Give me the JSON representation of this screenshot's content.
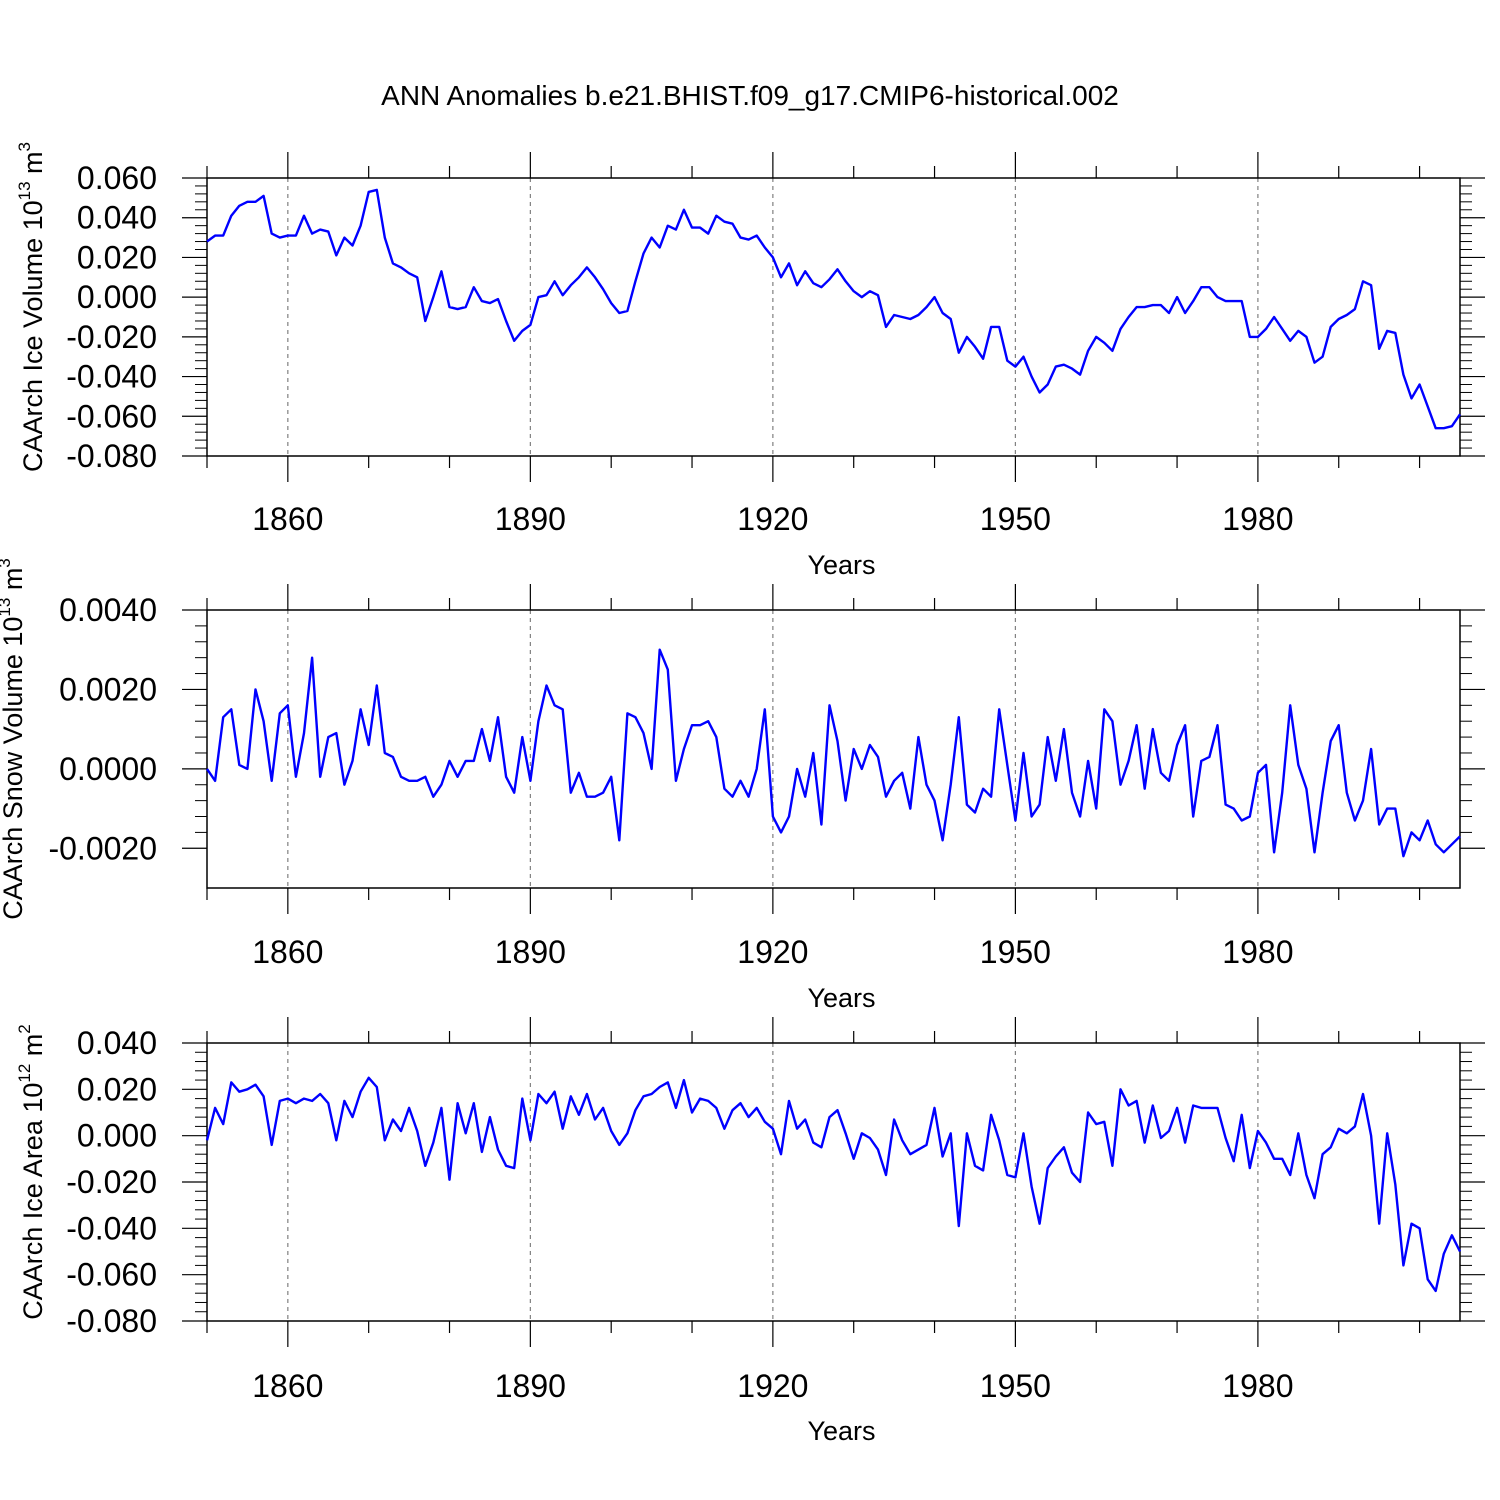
{
  "title": "ANN Anomalies b.e21.BHIST.f09_g17.CMIP6-historical.002",
  "colors": {
    "line": "#0000ff",
    "axis": "#000000",
    "grid": "#808080"
  },
  "chart_data": [
    {
      "type": "line",
      "ylabel": "CAArch Ice Volume 10",
      "ylabel_sup": "13",
      "ylabel_unit": " m",
      "ylabel_unit_sup": "3",
      "xlabel": "Years",
      "xlim": [
        1850,
        2005
      ],
      "ylim": [
        -0.08,
        0.06
      ],
      "xticks": [
        1860,
        1890,
        1920,
        1950,
        1980
      ],
      "xtick_labels": [
        "1860",
        "1890",
        "1920",
        "1950",
        "1980"
      ],
      "yticks": [
        -0.08,
        -0.06,
        -0.04,
        -0.02,
        0.0,
        0.02,
        0.04,
        0.06
      ],
      "ytick_labels": [
        "-0.080",
        "-0.060",
        "-0.040",
        "-0.020",
        "0.000",
        "0.020",
        "0.040",
        "0.060"
      ],
      "x_start": 1850,
      "values": [
        0.028,
        0.031,
        0.031,
        0.041,
        0.046,
        0.048,
        0.048,
        0.051,
        0.032,
        0.03,
        0.031,
        0.031,
        0.041,
        0.032,
        0.034,
        0.033,
        0.021,
        0.03,
        0.026,
        0.036,
        0.053,
        0.054,
        0.03,
        0.017,
        0.015,
        0.012,
        0.01,
        -0.012,
        0.0,
        0.013,
        -0.005,
        -0.006,
        -0.005,
        0.005,
        -0.002,
        -0.003,
        -0.001,
        -0.012,
        -0.022,
        -0.017,
        -0.014,
        0.0,
        0.001,
        0.008,
        0.001,
        0.006,
        0.01,
        0.015,
        0.01,
        0.004,
        -0.003,
        -0.008,
        -0.007,
        0.008,
        0.022,
        0.03,
        0.025,
        0.036,
        0.034,
        0.044,
        0.035,
        0.035,
        0.032,
        0.041,
        0.038,
        0.037,
        0.03,
        0.029,
        0.031,
        0.025,
        0.02,
        0.01,
        0.017,
        0.006,
        0.013,
        0.007,
        0.005,
        0.009,
        0.014,
        0.008,
        0.003,
        0.0,
        0.003,
        0.001,
        -0.015,
        -0.009,
        -0.01,
        -0.011,
        -0.009,
        -0.005,
        0.0,
        -0.008,
        -0.011,
        -0.028,
        -0.02,
        -0.025,
        -0.031,
        -0.015,
        -0.015,
        -0.032,
        -0.035,
        -0.03,
        -0.04,
        -0.048,
        -0.044,
        -0.035,
        -0.034,
        -0.036,
        -0.039,
        -0.027,
        -0.02,
        -0.023,
        -0.027,
        -0.016,
        -0.01,
        -0.005,
        -0.005,
        -0.004,
        -0.004,
        -0.008,
        0.0,
        -0.008,
        -0.002,
        0.005,
        0.005,
        0.0,
        -0.002,
        -0.002,
        -0.002,
        -0.02,
        -0.02,
        -0.016,
        -0.01,
        -0.016,
        -0.022,
        -0.017,
        -0.02,
        -0.033,
        -0.03,
        -0.015,
        -0.011,
        -0.009,
        -0.006,
        0.008,
        0.006,
        -0.026,
        -0.017,
        -0.018,
        -0.039,
        -0.051,
        -0.044,
        -0.055,
        -0.066,
        -0.066,
        -0.065,
        -0.059
      ]
    },
    {
      "type": "line",
      "ylabel": "CAArch Snow Volume 10",
      "ylabel_sup": "13",
      "ylabel_unit": " m",
      "ylabel_unit_sup": "3",
      "xlabel": "Years",
      "xlim": [
        1850,
        2005
      ],
      "ylim": [
        -0.003,
        0.004
      ],
      "xticks": [
        1860,
        1890,
        1920,
        1950,
        1980
      ],
      "xtick_labels": [
        "1860",
        "1890",
        "1920",
        "1950",
        "1980"
      ],
      "yticks": [
        -0.002,
        0.0,
        0.002,
        0.004
      ],
      "ytick_labels": [
        "-0.0020",
        "0.0000",
        "0.0020",
        "0.0040"
      ],
      "x_start": 1850,
      "values": [
        0.0,
        -0.0003,
        0.0013,
        0.0015,
        0.0001,
        0.0,
        0.002,
        0.0012,
        -0.0003,
        0.0014,
        0.0016,
        -0.0002,
        0.0009,
        0.0028,
        -0.0002,
        0.0008,
        0.0009,
        -0.0004,
        0.0002,
        0.0015,
        0.0006,
        0.0021,
        0.0004,
        0.0003,
        -0.0002,
        -0.0003,
        -0.0003,
        -0.0002,
        -0.0007,
        -0.0004,
        0.0002,
        -0.0002,
        0.0002,
        0.0002,
        0.001,
        0.0002,
        0.0013,
        -0.0002,
        -0.0006,
        0.0008,
        -0.0003,
        0.0012,
        0.0021,
        0.0016,
        0.0015,
        -0.0006,
        -0.0001,
        -0.0007,
        -0.0007,
        -0.0006,
        -0.0002,
        -0.0018,
        0.0014,
        0.0013,
        0.0009,
        0.0,
        0.003,
        0.0025,
        -0.0003,
        0.0005,
        0.0011,
        0.0011,
        0.0012,
        0.0008,
        -0.0005,
        -0.0007,
        -0.0003,
        -0.0007,
        0.0,
        0.0015,
        -0.0012,
        -0.0016,
        -0.0012,
        0.0,
        -0.0007,
        0.0004,
        -0.0014,
        0.0016,
        0.0007,
        -0.0008,
        0.0005,
        0.0,
        0.0006,
        0.0003,
        -0.0007,
        -0.0003,
        -0.0001,
        -0.001,
        0.0008,
        -0.0004,
        -0.0008,
        -0.0018,
        -0.0004,
        0.0013,
        -0.0009,
        -0.0011,
        -0.0005,
        -0.0007,
        0.0015,
        0.0001,
        -0.0013,
        0.0004,
        -0.0012,
        -0.0009,
        0.0008,
        -0.0003,
        0.001,
        -0.0006,
        -0.0012,
        0.0002,
        -0.001,
        0.0015,
        0.0012,
        -0.0004,
        0.0002,
        0.0011,
        -0.0005,
        0.001,
        -0.0001,
        -0.0003,
        0.0006,
        0.0011,
        -0.0012,
        0.0002,
        0.0003,
        0.0011,
        -0.0009,
        -0.001,
        -0.0013,
        -0.0012,
        -0.0001,
        0.0001,
        -0.0021,
        -0.0006,
        0.0016,
        0.0001,
        -0.0005,
        -0.0021,
        -0.0006,
        0.0007,
        0.0011,
        -0.0006,
        -0.0013,
        -0.0008,
        0.0005,
        -0.0014,
        -0.001,
        -0.001,
        -0.0022,
        -0.0016,
        -0.0018,
        -0.0013,
        -0.0019,
        -0.0021,
        -0.0019,
        -0.0017
      ]
    },
    {
      "type": "line",
      "ylabel": "CAArch Ice Area 10",
      "ylabel_sup": "12",
      "ylabel_unit": " m",
      "ylabel_unit_sup": "2",
      "xlabel": "Years",
      "xlim": [
        1850,
        2005
      ],
      "ylim": [
        -0.08,
        0.04
      ],
      "xticks": [
        1860,
        1890,
        1920,
        1950,
        1980
      ],
      "xtick_labels": [
        "1860",
        "1890",
        "1920",
        "1950",
        "1980"
      ],
      "yticks": [
        -0.08,
        -0.06,
        -0.04,
        -0.02,
        0.0,
        0.02,
        0.04
      ],
      "ytick_labels": [
        "-0.080",
        "-0.060",
        "-0.040",
        "-0.020",
        "0.000",
        "0.020",
        "0.040"
      ],
      "x_start": 1850,
      "values": [
        -0.002,
        0.012,
        0.005,
        0.023,
        0.019,
        0.02,
        0.022,
        0.017,
        -0.004,
        0.015,
        0.016,
        0.014,
        0.016,
        0.015,
        0.018,
        0.014,
        -0.002,
        0.015,
        0.008,
        0.019,
        0.025,
        0.021,
        -0.002,
        0.007,
        0.002,
        0.012,
        0.002,
        -0.013,
        -0.003,
        0.012,
        -0.019,
        0.014,
        0.001,
        0.014,
        -0.007,
        0.008,
        -0.006,
        -0.013,
        -0.014,
        0.016,
        -0.002,
        0.018,
        0.014,
        0.019,
        0.003,
        0.017,
        0.009,
        0.018,
        0.007,
        0.012,
        0.002,
        -0.004,
        0.001,
        0.011,
        0.017,
        0.018,
        0.021,
        0.023,
        0.012,
        0.024,
        0.01,
        0.016,
        0.015,
        0.012,
        0.003,
        0.011,
        0.014,
        0.008,
        0.012,
        0.006,
        0.003,
        -0.008,
        0.015,
        0.003,
        0.007,
        -0.003,
        -0.005,
        0.008,
        0.011,
        0.001,
        -0.01,
        0.001,
        -0.001,
        -0.006,
        -0.017,
        0.007,
        -0.002,
        -0.008,
        -0.006,
        -0.004,
        0.012,
        -0.009,
        0.001,
        -0.039,
        0.001,
        -0.013,
        -0.015,
        0.009,
        -0.002,
        -0.017,
        -0.018,
        0.001,
        -0.022,
        -0.038,
        -0.014,
        -0.009,
        -0.005,
        -0.016,
        -0.02,
        0.01,
        0.005,
        0.006,
        -0.013,
        0.02,
        0.013,
        0.015,
        -0.003,
        0.013,
        -0.001,
        0.002,
        0.012,
        -0.003,
        0.013,
        0.012,
        0.012,
        0.012,
        -0.001,
        -0.011,
        0.009,
        -0.014,
        0.002,
        -0.003,
        -0.01,
        -0.01,
        -0.017,
        0.001,
        -0.017,
        -0.027,
        -0.008,
        -0.005,
        0.003,
        0.001,
        0.004,
        0.018,
        0.0,
        -0.038,
        0.001,
        -0.021,
        -0.056,
        -0.038,
        -0.04,
        -0.062,
        -0.067,
        -0.051,
        -0.043,
        -0.05
      ]
    }
  ]
}
